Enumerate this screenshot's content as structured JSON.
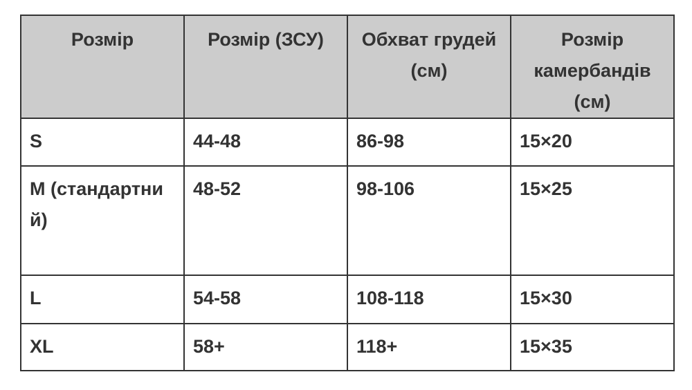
{
  "table": {
    "headers": [
      "Розмір",
      "Розмір (ЗСУ)",
      "Обхват грудей (см)",
      "Розмір камербандів (см)"
    ],
    "rows": [
      [
        "S",
        "44-48",
        "86-98",
        "15×20"
      ],
      [
        "M (стандартний)",
        "48-52",
        "98-106",
        "15×25"
      ],
      [
        "L",
        "54-58",
        "108-118",
        "15×30"
      ],
      [
        "XL",
        "58+",
        "118+",
        "15×35"
      ]
    ]
  },
  "colors": {
    "header_bg": "#cccccc",
    "border": "#333333",
    "text": "#333333"
  }
}
